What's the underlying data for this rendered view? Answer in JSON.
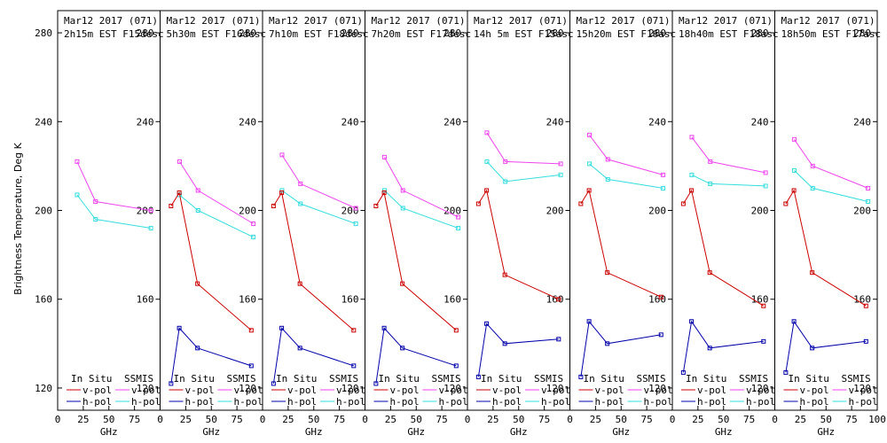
{
  "chart_data": {
    "type": "line",
    "ylabel": "Brightness Temperature, Deg K",
    "xlabel": "GHz",
    "ylim": [
      110,
      290
    ],
    "xlim": [
      0,
      100
    ],
    "yticks": [
      120,
      160,
      200,
      240,
      280
    ],
    "xticks": [
      0,
      25,
      50,
      75,
      100
    ],
    "legend": {
      "insitu_heading": "In Situ",
      "ssmis_heading": "SSMIS",
      "vpol_label": "v-pol",
      "hpol_label": "h-pol"
    },
    "colors": {
      "insitu_v": "#cc0000",
      "insitu_h": "#0000aa",
      "ssmis_v": "#ee44ee",
      "ssmis_h": "#33dddd"
    },
    "panels": [
      {
        "title1": "Mar12 2017 (071)",
        "title2": "2h15m EST F15desc",
        "insitu_v": [],
        "insitu_h": [],
        "ssmis_v": [
          [
            19,
            222
          ],
          [
            37,
            204
          ],
          [
            91,
            200
          ]
        ],
        "ssmis_h": [
          [
            19,
            207
          ],
          [
            37,
            196
          ],
          [
            91,
            192
          ]
        ]
      },
      {
        "title1": "Mar12 2017 (071)",
        "title2": "5h30m EST F16desc",
        "insitu_v": [
          [
            10.7,
            202
          ],
          [
            18.7,
            208
          ],
          [
            36.5,
            167
          ],
          [
            89,
            146
          ]
        ],
        "insitu_h": [
          [
            10.7,
            122
          ],
          [
            18.7,
            147
          ],
          [
            36.5,
            138
          ],
          [
            89,
            130
          ]
        ],
        "ssmis_v": [
          [
            19,
            222
          ],
          [
            37,
            209
          ],
          [
            91,
            194
          ]
        ],
        "ssmis_h": [
          [
            19,
            207
          ],
          [
            37,
            200
          ],
          [
            91,
            188
          ]
        ]
      },
      {
        "title1": "Mar12 2017 (071)",
        "title2": "7h10m EST F18desc",
        "insitu_v": [
          [
            10.7,
            202
          ],
          [
            18.7,
            208
          ],
          [
            36.5,
            167
          ],
          [
            89,
            146
          ]
        ],
        "insitu_h": [
          [
            10.7,
            122
          ],
          [
            18.7,
            147
          ],
          [
            36.5,
            138
          ],
          [
            89,
            130
          ]
        ],
        "ssmis_v": [
          [
            19,
            225
          ],
          [
            37,
            212
          ],
          [
            91,
            201
          ]
        ],
        "ssmis_h": [
          [
            19,
            209
          ],
          [
            37,
            203
          ],
          [
            91,
            194
          ]
        ]
      },
      {
        "title1": "Mar12 2017 (071)",
        "title2": "7h20m EST F17desc",
        "insitu_v": [
          [
            10.7,
            202
          ],
          [
            18.7,
            208
          ],
          [
            36.5,
            167
          ],
          [
            89,
            146
          ]
        ],
        "insitu_h": [
          [
            10.7,
            122
          ],
          [
            18.7,
            147
          ],
          [
            36.5,
            138
          ],
          [
            89,
            130
          ]
        ],
        "ssmis_v": [
          [
            19,
            224
          ],
          [
            37,
            209
          ],
          [
            91,
            197
          ]
        ],
        "ssmis_h": [
          [
            19,
            209
          ],
          [
            37,
            201
          ],
          [
            91,
            192
          ]
        ]
      },
      {
        "title1": "Mar12 2017 (071)",
        "title2": "14h 5m EST F15asc",
        "insitu_v": [
          [
            10.7,
            203
          ],
          [
            18.7,
            209
          ],
          [
            36.5,
            171
          ],
          [
            89,
            160
          ]
        ],
        "insitu_h": [
          [
            10.7,
            125
          ],
          [
            18.7,
            149
          ],
          [
            36.5,
            140
          ],
          [
            89,
            142
          ]
        ],
        "ssmis_v": [
          [
            19,
            235
          ],
          [
            37,
            222
          ],
          [
            91,
            221
          ]
        ],
        "ssmis_h": [
          [
            19,
            222
          ],
          [
            37,
            213
          ],
          [
            91,
            216
          ]
        ]
      },
      {
        "title1": "Mar12 2017 (071)",
        "title2": "15h20m EST F16asc",
        "insitu_v": [
          [
            10.7,
            203
          ],
          [
            18.7,
            209
          ],
          [
            36.5,
            172
          ],
          [
            89,
            161
          ]
        ],
        "insitu_h": [
          [
            10.7,
            125
          ],
          [
            18.7,
            150
          ],
          [
            36.5,
            140
          ],
          [
            89,
            144
          ]
        ],
        "ssmis_v": [
          [
            19,
            234
          ],
          [
            37,
            223
          ],
          [
            91,
            216
          ]
        ],
        "ssmis_h": [
          [
            19,
            221
          ],
          [
            37,
            214
          ],
          [
            91,
            210
          ]
        ]
      },
      {
        "title1": "Mar12 2017 (071)",
        "title2": "18h40m EST F18asc",
        "insitu_v": [
          [
            10.7,
            203
          ],
          [
            18.7,
            209
          ],
          [
            36.5,
            172
          ],
          [
            89,
            157
          ]
        ],
        "insitu_h": [
          [
            10.7,
            127
          ],
          [
            18.7,
            150
          ],
          [
            36.5,
            138
          ],
          [
            89,
            141
          ]
        ],
        "ssmis_v": [
          [
            19,
            233
          ],
          [
            37,
            222
          ],
          [
            91,
            217
          ]
        ],
        "ssmis_h": [
          [
            19,
            216
          ],
          [
            37,
            212
          ],
          [
            91,
            211
          ]
        ]
      },
      {
        "title1": "Mar12 2017 (071)",
        "title2": "18h50m EST F17asc",
        "insitu_v": [
          [
            10.7,
            203
          ],
          [
            18.7,
            209
          ],
          [
            36.5,
            172
          ],
          [
            89,
            157
          ]
        ],
        "insitu_h": [
          [
            10.7,
            127
          ],
          [
            18.7,
            150
          ],
          [
            36.5,
            138
          ],
          [
            89,
            141
          ]
        ],
        "ssmis_v": [
          [
            19,
            232
          ],
          [
            37,
            220
          ],
          [
            91,
            210
          ]
        ],
        "ssmis_h": [
          [
            19,
            218
          ],
          [
            37,
            210
          ],
          [
            91,
            204
          ]
        ]
      }
    ]
  }
}
